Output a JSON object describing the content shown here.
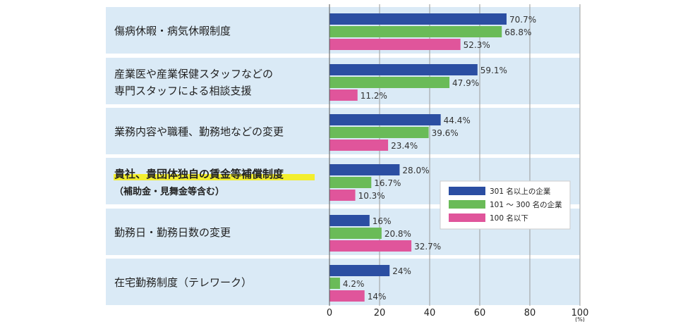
{
  "chart_data": {
    "type": "bar",
    "orientation": "horizontal",
    "categories": [
      {
        "lines": [
          "傷病休暇・病気休暇制度"
        ],
        "emphasis": false
      },
      {
        "lines": [
          "産業医や産業保健スタッフなどの",
          "専門スタッフによる相談支援"
        ],
        "emphasis": false
      },
      {
        "lines": [
          "業務内容や職種、勤務地などの変更"
        ],
        "emphasis": false
      },
      {
        "lines": [
          "貴社、貴団体独自の賃金等補償制度"
        ],
        "sub": "（補助金・見舞金等含む）",
        "emphasis": true
      },
      {
        "lines": [
          "勤務日・勤務日数の変更"
        ],
        "emphasis": false
      },
      {
        "lines": [
          "在宅勤務制度（テレワーク）"
        ],
        "emphasis": false
      }
    ],
    "series": [
      {
        "name": "301 名以上の企業",
        "color": "#2b4ea2",
        "values": [
          70.7,
          59.1,
          44.4,
          28.0,
          16,
          24
        ],
        "labels": [
          "70.7%",
          "59.1%",
          "44.4%",
          "28.0%",
          "16%",
          "24%"
        ]
      },
      {
        "name": "101 ～ 300 名の企業",
        "color": "#6abb58",
        "values": [
          68.8,
          47.9,
          39.6,
          16.7,
          20.8,
          4.2
        ],
        "labels": [
          "68.8%",
          "47.9%",
          "39.6%",
          "16.7%",
          "20.8%",
          "4.2%"
        ]
      },
      {
        "name": "100 名以下",
        "color": "#e0559b",
        "values": [
          52.3,
          11.2,
          23.4,
          10.3,
          32.7,
          14
        ],
        "labels": [
          "52.3%",
          "11.2%",
          "23.4%",
          "10.3%",
          "32.7%",
          "14%"
        ]
      }
    ],
    "xlim": [
      0,
      100
    ],
    "xticks": [
      "0",
      "20",
      "40",
      "60",
      "80",
      "100"
    ],
    "xunit": "(%)",
    "grid": true,
    "legend_position": "right-middle",
    "row_background": "#daeaf6",
    "highlight_color": "#f3ee2e"
  }
}
